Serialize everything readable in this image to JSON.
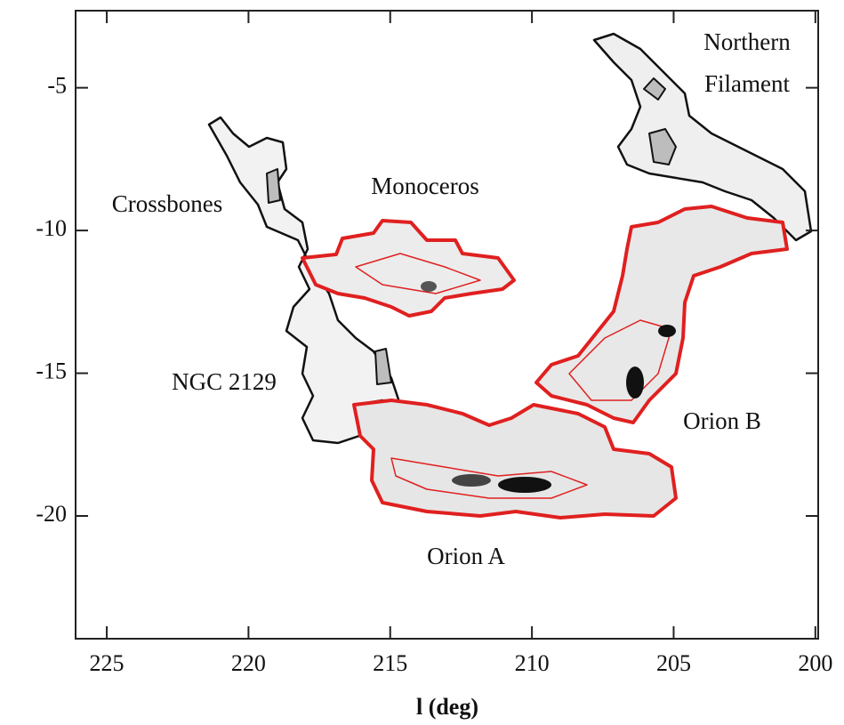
{
  "chart_data": {
    "type": "contour-map",
    "x_label": "l (deg)",
    "xlim": [
      226.1,
      199.9
    ],
    "xticks": [
      225,
      220,
      215,
      210,
      205,
      200
    ],
    "ylim": [
      -24.3,
      -2.3
    ],
    "yticks": [
      -5,
      -10,
      -15,
      -20
    ],
    "annotations": [
      "Northern",
      "Filament",
      "Crossbones",
      "Monoceros",
      "NGC 2129",
      "Orion B",
      "Orion A"
    ]
  }
}
